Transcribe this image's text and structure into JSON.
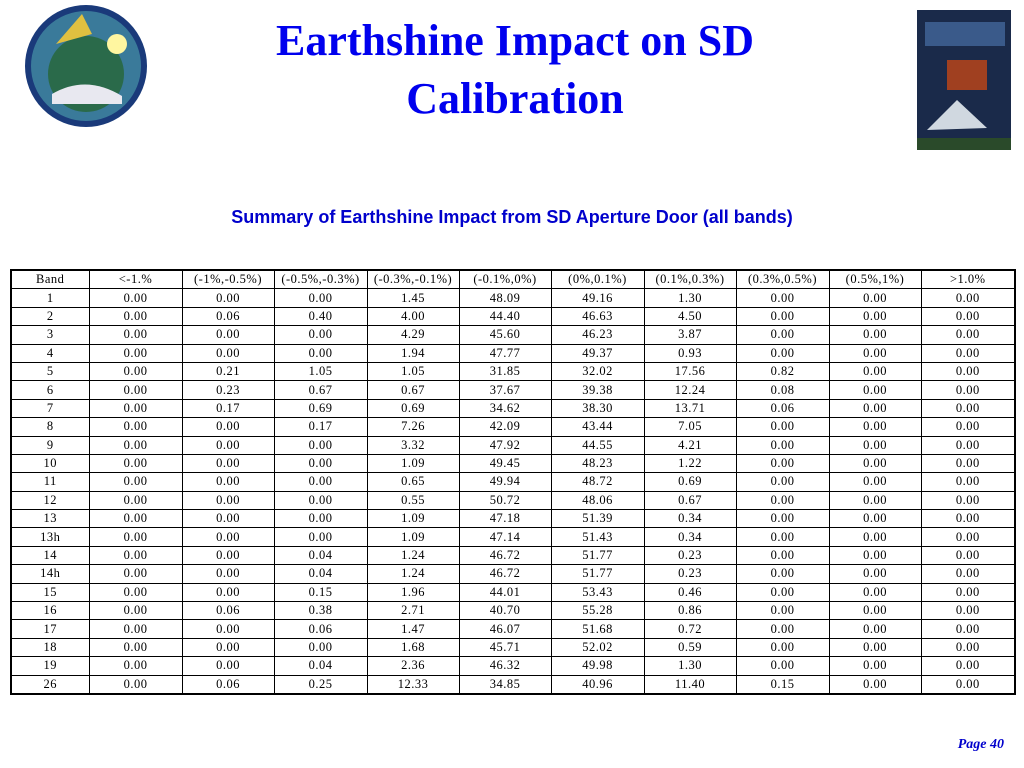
{
  "header": {
    "title_line1": "Earthshine Impact on SD",
    "title_line2": "Calibration"
  },
  "subtitle": "Summary of Earthshine Impact from SD Aperture Door (all bands)",
  "table": {
    "header": [
      "Band",
      "<-1.%",
      "(-1%,-0.5%)",
      "(-0.5%,-0.3%)",
      "(-0.3%,-0.1%)",
      "(-0.1%,0%)",
      "(0%,0.1%)",
      "(0.1%,0.3%)",
      "(0.3%,0.5%)",
      "(0.5%,1%)",
      ">1.0%"
    ],
    "rows": [
      [
        "1",
        "0.00",
        "0.00",
        "0.00",
        "1.45",
        "48.09",
        "49.16",
        "1.30",
        "0.00",
        "0.00",
        "0.00"
      ],
      [
        "2",
        "0.00",
        "0.06",
        "0.40",
        "4.00",
        "44.40",
        "46.63",
        "4.50",
        "0.00",
        "0.00",
        "0.00"
      ],
      [
        "3",
        "0.00",
        "0.00",
        "0.00",
        "4.29",
        "45.60",
        "46.23",
        "3.87",
        "0.00",
        "0.00",
        "0.00"
      ],
      [
        "4",
        "0.00",
        "0.00",
        "0.00",
        "1.94",
        "47.77",
        "49.37",
        "0.93",
        "0.00",
        "0.00",
        "0.00"
      ],
      [
        "5",
        "0.00",
        "0.21",
        "1.05",
        "1.05",
        "31.85",
        "32.02",
        "17.56",
        "0.82",
        "0.00",
        "0.00"
      ],
      [
        "6",
        "0.00",
        "0.23",
        "0.67",
        "0.67",
        "37.67",
        "39.38",
        "12.24",
        "0.08",
        "0.00",
        "0.00"
      ],
      [
        "7",
        "0.00",
        "0.17",
        "0.69",
        "0.69",
        "34.62",
        "38.30",
        "13.71",
        "0.06",
        "0.00",
        "0.00"
      ],
      [
        "8",
        "0.00",
        "0.00",
        "0.17",
        "7.26",
        "42.09",
        "43.44",
        "7.05",
        "0.00",
        "0.00",
        "0.00"
      ],
      [
        "9",
        "0.00",
        "0.00",
        "0.00",
        "3.32",
        "47.92",
        "44.55",
        "4.21",
        "0.00",
        "0.00",
        "0.00"
      ],
      [
        "10",
        "0.00",
        "0.00",
        "0.00",
        "1.09",
        "49.45",
        "48.23",
        "1.22",
        "0.00",
        "0.00",
        "0.00"
      ],
      [
        "11",
        "0.00",
        "0.00",
        "0.00",
        "0.65",
        "49.94",
        "48.72",
        "0.69",
        "0.00",
        "0.00",
        "0.00"
      ],
      [
        "12",
        "0.00",
        "0.00",
        "0.00",
        "0.55",
        "50.72",
        "48.06",
        "0.67",
        "0.00",
        "0.00",
        "0.00"
      ],
      [
        "13",
        "0.00",
        "0.00",
        "0.00",
        "1.09",
        "47.18",
        "51.39",
        "0.34",
        "0.00",
        "0.00",
        "0.00"
      ],
      [
        "13h",
        "0.00",
        "0.00",
        "0.00",
        "1.09",
        "47.14",
        "51.43",
        "0.34",
        "0.00",
        "0.00",
        "0.00"
      ],
      [
        "14",
        "0.00",
        "0.00",
        "0.04",
        "1.24",
        "46.72",
        "51.77",
        "0.23",
        "0.00",
        "0.00",
        "0.00"
      ],
      [
        "14h",
        "0.00",
        "0.00",
        "0.04",
        "1.24",
        "46.72",
        "51.77",
        "0.23",
        "0.00",
        "0.00",
        "0.00"
      ],
      [
        "15",
        "0.00",
        "0.00",
        "0.15",
        "1.96",
        "44.01",
        "53.43",
        "0.46",
        "0.00",
        "0.00",
        "0.00"
      ],
      [
        "16",
        "0.00",
        "0.06",
        "0.38",
        "2.71",
        "40.70",
        "55.28",
        "0.86",
        "0.00",
        "0.00",
        "0.00"
      ],
      [
        "17",
        "0.00",
        "0.00",
        "0.06",
        "1.47",
        "46.07",
        "51.68",
        "0.72",
        "0.00",
        "0.00",
        "0.00"
      ],
      [
        "18",
        "0.00",
        "0.00",
        "0.00",
        "1.68",
        "45.71",
        "52.02",
        "0.59",
        "0.00",
        "0.00",
        "0.00"
      ],
      [
        "19",
        "0.00",
        "0.00",
        "0.04",
        "2.36",
        "46.32",
        "49.98",
        "1.30",
        "0.00",
        "0.00",
        "0.00"
      ],
      [
        "26",
        "0.00",
        "0.06",
        "0.25",
        "12.33",
        "34.85",
        "40.96",
        "11.40",
        "0.15",
        "0.00",
        "0.00"
      ]
    ]
  },
  "footer": {
    "page": "Page 40"
  }
}
